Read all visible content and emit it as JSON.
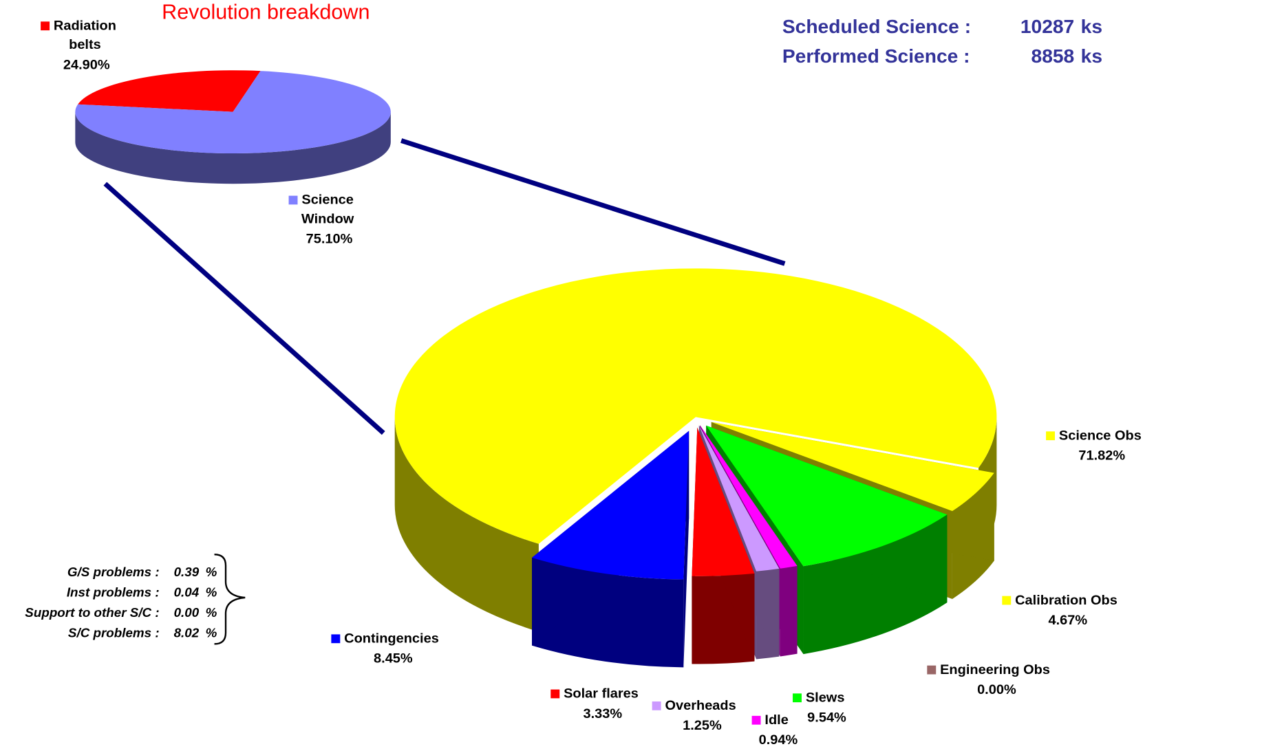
{
  "chart_data": [
    {
      "type": "pie",
      "title": "Revolution breakdown",
      "categories": [
        "Radiation belts",
        "Science Window"
      ],
      "values": [
        24.9,
        75.1
      ],
      "value_labels": [
        "24.90%",
        "75.10%"
      ],
      "colors": [
        "#ff0000",
        "#8080ff"
      ]
    },
    {
      "type": "pie",
      "categories": [
        "Calibration Obs",
        "Engineering Obs",
        "Slews",
        "Idle",
        "Overheads",
        "Solar flares",
        "Contingencies",
        "Science Obs"
      ],
      "values": [
        4.67,
        0,
        9.54,
        0.94,
        1.25,
        3.33,
        8.45,
        71.82
      ],
      "value_labels": [
        "4.67%",
        "0.00%",
        "9.54%",
        "0.94%",
        "1.25%",
        "3.33%",
        "8.45%",
        "71.82%"
      ],
      "colors": [
        "#ffff00",
        "#996666",
        "#00ff00",
        "#ff00ff",
        "#cc99ff",
        "#ff0000",
        "#0000ff",
        "#ffff00"
      ]
    }
  ],
  "science": [
    {
      "label": "Scheduled Science :",
      "value": 10287,
      "unit": "ks"
    },
    {
      "label": "Performed Science :",
      "value": 8858,
      "unit": "ks"
    }
  ],
  "contingency_breakdown": {
    "labels": [
      "G/S problems :",
      "Inst problems :",
      "Support to other S/C :",
      "S/C problems :"
    ],
    "values": [
      0.39,
      0.04,
      0,
      8.02
    ],
    "value_labels": [
      "0.39",
      "0.04",
      "0.00",
      "8.02"
    ],
    "unit": "%"
  }
}
